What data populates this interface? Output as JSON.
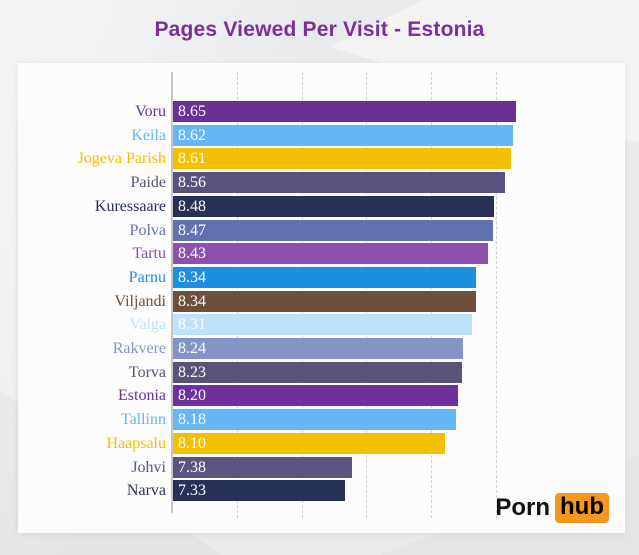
{
  "title": "Pages Viewed Per Visit - Estonia",
  "title_color": "#7b2f9b",
  "logo": {
    "part1": "Porn",
    "part2": "hub",
    "accent": "#f7971d"
  },
  "chart_data": {
    "type": "bar",
    "orientation": "horizontal",
    "title": "Pages Viewed Per Visit - Estonia",
    "xlabel": "",
    "ylabel": "",
    "xlim": [
      6.0,
      9.0
    ],
    "gridlines": [
      6.5,
      7.0,
      7.5,
      8.0,
      8.5
    ],
    "grid_style": "dashed",
    "legend": false,
    "value_label_color": "#ffffff",
    "categories": [
      "Voru",
      "Keila",
      "Jogeva Parish",
      "Paide",
      "Kuressaare",
      "Polva",
      "Tartu",
      "Parnu",
      "Viljandi",
      "Valga",
      "Rakvere",
      "Torva",
      "Estonia",
      "Tallinn",
      "Haapsalu",
      "Johvi",
      "Narva"
    ],
    "values": [
      8.65,
      8.62,
      8.61,
      8.56,
      8.48,
      8.47,
      8.43,
      8.34,
      8.34,
      8.31,
      8.24,
      8.23,
      8.2,
      8.18,
      8.1,
      7.38,
      7.33
    ],
    "value_labels": [
      "8.65",
      "8.62",
      "8.61",
      "8.56",
      "8.48",
      "8.47",
      "8.43",
      "8.34",
      "8.34",
      "8.31",
      "8.24",
      "8.23",
      "8.20",
      "8.18",
      "8.10",
      "7.38",
      "7.33"
    ],
    "bar_colors": [
      "#6b3095",
      "#63b7f6",
      "#f3c101",
      "#5b5280",
      "#273057",
      "#6173ae",
      "#8c51ab",
      "#1d8fe1",
      "#6e503a",
      "#bfe2fb",
      "#8593c6",
      "#5b527a",
      "#6d309c",
      "#63b7f6",
      "#f3c101",
      "#5d5380",
      "#273057"
    ],
    "label_colors": [
      "#6b3095",
      "#63b7f6",
      "#f3c101",
      "#5b5280",
      "#273057",
      "#6173ae",
      "#8c51ab",
      "#1d8fe1",
      "#6e503a",
      "#bfe2fb",
      "#8593c6",
      "#5b527a",
      "#6d309c",
      "#63b7f6",
      "#f3c101",
      "#5d5380",
      "#273057"
    ]
  }
}
